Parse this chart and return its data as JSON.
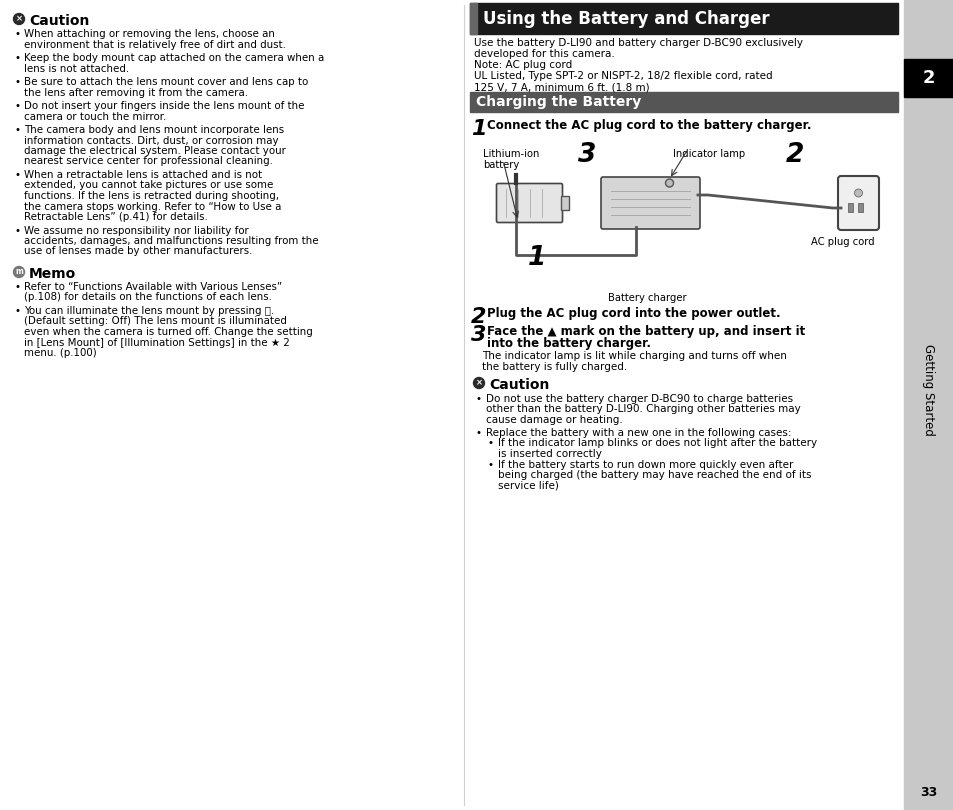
{
  "page_bg": "#ffffff",
  "sidebar_bg": "#c8c8c8",
  "main_title": "Using the Battery and Charger",
  "section_title": "Charging the Battery",
  "chapter_number": "2",
  "chapter_title": "Getting Started",
  "page_number": "33",
  "left_caution_bullets": [
    "When attaching or removing the lens, choose an environment that is relatively free of dirt and dust.",
    "Keep the body mount cap attached on the camera when a lens is not attached.",
    "Be sure to attach the lens mount cover and lens cap to the lens after removing it from the camera.",
    "Do not insert your fingers inside the lens mount of the camera or touch the mirror.",
    "The camera body and lens mount incorporate lens information contacts. Dirt, dust, or corrosion may damage the electrical system. Please contact your nearest service center for professional cleaning.",
    "When a retractable lens is attached and is not extended, you cannot take pictures or use some functions. If the lens is retracted during shooting, the camera stops working. Refer to “How to Use a Retractable Lens” (p.41) for details.",
    "We assume no responsibility nor liability for accidents, damages, and malfunctions resulting from the use of lenses made by other manufacturers."
  ],
  "left_memo_bullets": [
    "Refer to “Functions Available with Various Lenses” (p.108) for details on the functions of each lens.",
    "You can illuminate the lens mount by pressing ⎙. (Default setting: Off) The lens mount is illuminated even when the camera is turned off. Change the setting in [Lens Mount] of [Illumination Settings] in the ★ 2 menu. (p.100)"
  ],
  "intro_lines": [
    "Use the battery D-LI90 and battery charger D-BC90 exclusively",
    "developed for this camera.",
    "Note: AC plug cord",
    "UL Listed, Type SPT-2 or NISPT-2, 18/2 flexible cord, rated",
    "125 V, 7 A, minimum 6 ft. (1.8 m)"
  ],
  "step1": "Connect the AC plug cord to the battery charger.",
  "step2": "Plug the AC plug cord into the power outlet.",
  "step3_lines": [
    "Face the ▲ mark on the battery up, and insert it",
    "into the battery charger."
  ],
  "step3_detail": [
    "The indicator lamp is lit while charging and turns off when",
    "the battery is fully charged."
  ],
  "caution2_b1": [
    "Do not use the battery charger D-BC90 to charge batteries",
    "other than the battery D-LI90. Charging other batteries may",
    "cause damage or heating."
  ],
  "caution2_b2": "Replace the battery with a new one in the following cases:",
  "caution2_sub1": [
    "If the indicator lamp blinks or does not light after the battery",
    "is inserted correctly"
  ],
  "caution2_sub2": [
    "If the battery starts to run down more quickly even after",
    "being charged (the battery may have reached the end of its",
    "service life)"
  ],
  "lbl_lithium": [
    "Lithium-ion",
    "battery"
  ],
  "lbl_indicator": "Indicator lamp",
  "lbl_ac_cord": "AC plug cord",
  "lbl_charger": "Battery charger"
}
